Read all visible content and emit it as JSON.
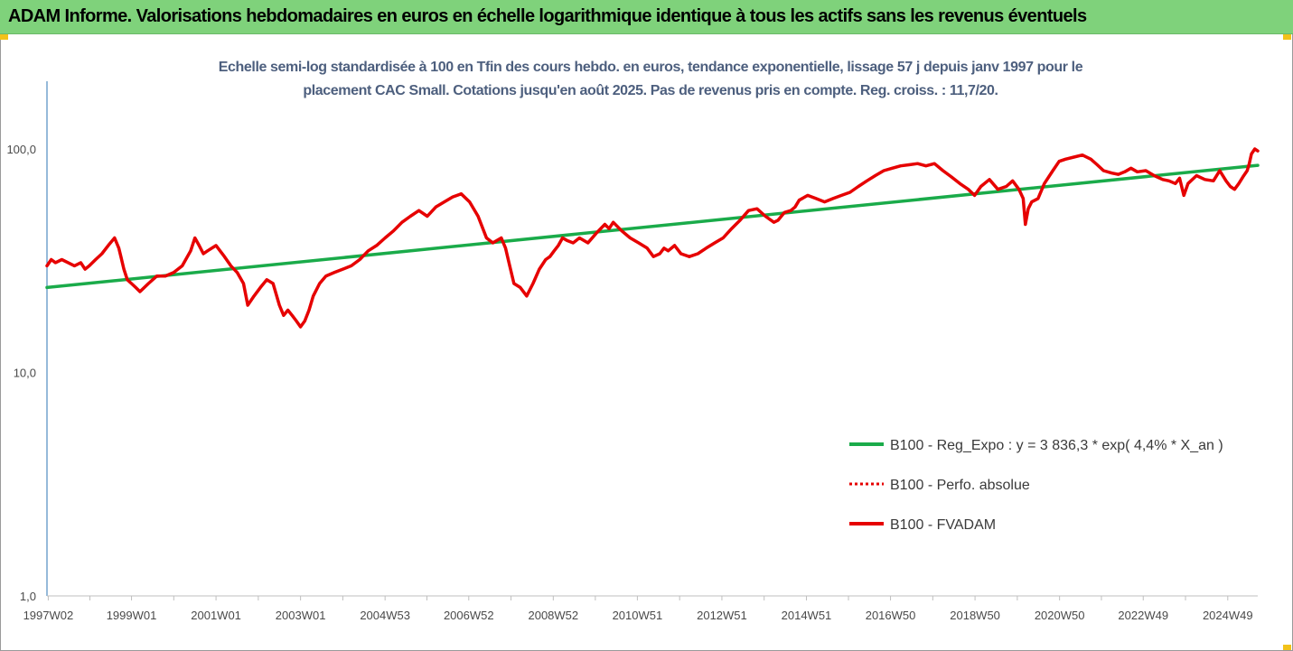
{
  "header": {
    "title": "ADAM Informe. Valorisations hebdomadaires en euros en échelle logarithmique identique à tous les actifs sans les revenus éventuels"
  },
  "colors": {
    "banner": "#7fd27b",
    "regression": "#1aab4a",
    "series": "#e60000",
    "subtitle": "#4d5f7e",
    "axis": "#2e75b6"
  },
  "chart_data": {
    "type": "line",
    "title": "Echelle semi-log standardisée à 100 en Tfin des cours hebdo. en euros, tendance exponentielle, lissage 57 j depuis janv 1997 pour le placement CAC Small. Cotations jusqu'en août 2025. Pas de revenus pris en compte. Reg. croiss. : 11,7/20.",
    "title_lines": [
      "Echelle semi-log standardisée à 100 en Tfin des cours hebdo. en euros, tendance exponentielle, lissage 57 j depuis janv 1997 pour le",
      "placement CAC Small. Cotations jusqu'en août 2025. Pas de revenus pris en compte. Reg. croiss. : 11,7/20."
    ],
    "y_scale": "log",
    "ylim": [
      1,
      200
    ],
    "y_ticks": [
      {
        "value": 100,
        "label": "100,0"
      },
      {
        "value": 10,
        "label": "10,0"
      },
      {
        "value": 1,
        "label": "1,0"
      }
    ],
    "x_range": [
      1997.0,
      2025.65
    ],
    "x_ticks": [
      {
        "x": 1997.03,
        "label": "1997W02"
      },
      {
        "x": 1999.0,
        "label": "1999W01"
      },
      {
        "x": 2001.0,
        "label": "2001W01"
      },
      {
        "x": 2003.0,
        "label": "2003W01"
      },
      {
        "x": 2005.0,
        "label": "2004W53"
      },
      {
        "x": 2006.98,
        "label": "2006W52"
      },
      {
        "x": 2008.98,
        "label": "2008W52"
      },
      {
        "x": 2010.97,
        "label": "2010W51"
      },
      {
        "x": 2012.97,
        "label": "2012W51"
      },
      {
        "x": 2014.97,
        "label": "2014W51"
      },
      {
        "x": 2016.96,
        "label": "2016W50"
      },
      {
        "x": 2018.96,
        "label": "2018W50"
      },
      {
        "x": 2020.96,
        "label": "2020W50"
      },
      {
        "x": 2022.94,
        "label": "2022W49"
      },
      {
        "x": 2024.94,
        "label": "2024W49"
      }
    ],
    "legend_position": "right",
    "series": [
      {
        "name": "B100 - Reg_Expo : y = 3 836,3 * exp( 4,4% *  X_an )",
        "style": "solid",
        "color": "#1aab4a",
        "x": [
          1997.0,
          2025.65
        ],
        "y": [
          24,
          84.5
        ]
      },
      {
        "name": "B100 - Perfo. absolue",
        "style": "dotted",
        "color": "#e60000",
        "x": [],
        "y": []
      },
      {
        "name": "B100 - FVADAM",
        "style": "solid",
        "color": "#e60000",
        "x": [
          1997.0,
          1997.1,
          1997.2,
          1997.35,
          1997.5,
          1997.65,
          1997.8,
          1997.9,
          1998.0,
          1998.15,
          1998.3,
          1998.45,
          1998.6,
          1998.7,
          1998.75,
          1998.82,
          1998.9,
          1999.0,
          1999.1,
          1999.2,
          1999.4,
          1999.6,
          1999.8,
          2000.0,
          2000.2,
          2000.4,
          2000.5,
          2000.6,
          2000.7,
          2000.8,
          2001.0,
          2001.2,
          2001.35,
          2001.5,
          2001.65,
          2001.75,
          2001.9,
          2002.05,
          2002.2,
          2002.35,
          2002.5,
          2002.6,
          2002.7,
          2002.8,
          2002.9,
          2003.0,
          2003.1,
          2003.2,
          2003.3,
          2003.45,
          2003.6,
          2003.8,
          2004.0,
          2004.2,
          2004.4,
          2004.6,
          2004.8,
          2005.0,
          2005.2,
          2005.4,
          2005.6,
          2005.8,
          2006.0,
          2006.2,
          2006.4,
          2006.6,
          2006.8,
          2007.0,
          2007.2,
          2007.4,
          2007.55,
          2007.65,
          2007.75,
          2007.85,
          2007.95,
          2008.05,
          2008.2,
          2008.35,
          2008.5,
          2008.65,
          2008.8,
          2008.9,
          2009.0,
          2009.1,
          2009.2,
          2009.3,
          2009.45,
          2009.6,
          2009.8,
          2010.0,
          2010.2,
          2010.3,
          2010.4,
          2010.6,
          2010.8,
          2011.0,
          2011.2,
          2011.35,
          2011.5,
          2011.6,
          2011.7,
          2011.85,
          2012.0,
          2012.2,
          2012.4,
          2012.6,
          2012.8,
          2013.0,
          2013.2,
          2013.4,
          2013.6,
          2013.8,
          2014.0,
          2014.2,
          2014.3,
          2014.45,
          2014.6,
          2014.7,
          2014.8,
          2015.0,
          2015.2,
          2015.4,
          2015.6,
          2015.8,
          2016.0,
          2016.2,
          2016.4,
          2016.6,
          2016.8,
          2017.0,
          2017.2,
          2017.4,
          2017.6,
          2017.8,
          2018.0,
          2018.2,
          2018.4,
          2018.6,
          2018.8,
          2018.95,
          2019.1,
          2019.3,
          2019.5,
          2019.7,
          2019.85,
          2020.0,
          2020.1,
          2020.15,
          2020.22,
          2020.3,
          2020.45,
          2020.6,
          2020.8,
          2020.95,
          2021.1,
          2021.3,
          2021.5,
          2021.7,
          2021.85,
          2022.0,
          2022.2,
          2022.35,
          2022.5,
          2022.65,
          2022.8,
          2023.0,
          2023.2,
          2023.4,
          2023.55,
          2023.7,
          2023.8,
          2023.9,
          2024.0,
          2024.2,
          2024.4,
          2024.6,
          2024.75,
          2024.9,
          2025.0,
          2025.1,
          2025.2,
          2025.3,
          2025.4,
          2025.45,
          2025.5,
          2025.58,
          2025.65
        ],
        "y": [
          30,
          32,
          31,
          32,
          31,
          30,
          31,
          29,
          30,
          32,
          34,
          37,
          40,
          36,
          33,
          29,
          26,
          25,
          24,
          23,
          25,
          27,
          27,
          28,
          30,
          35,
          40,
          37,
          34,
          35,
          37,
          33,
          30,
          28,
          25,
          20,
          22,
          24,
          26,
          25,
          20,
          18,
          19,
          18,
          17,
          16,
          17,
          19,
          22,
          25,
          27,
          28,
          29,
          30,
          32,
          35,
          37,
          40,
          43,
          47,
          50,
          53,
          50,
          55,
          58,
          61,
          63,
          58,
          50,
          40,
          38,
          39,
          40,
          36,
          30,
          25,
          24,
          22,
          25,
          29,
          32,
          33,
          35,
          37,
          40,
          39,
          38,
          40,
          38,
          42,
          46,
          44,
          47,
          43,
          40,
          38,
          36,
          33,
          34,
          36,
          35,
          37,
          34,
          33,
          34,
          36,
          38,
          40,
          44,
          48,
          53,
          54,
          50,
          47,
          48,
          52,
          53,
          55,
          59,
          62,
          60,
          58,
          60,
          62,
          64,
          68,
          72,
          76,
          80,
          82,
          84,
          85,
          86,
          84,
          86,
          80,
          75,
          70,
          66,
          62,
          68,
          73,
          66,
          68,
          72,
          66,
          60,
          46,
          54,
          58,
          60,
          70,
          80,
          88,
          90,
          92,
          94,
          90,
          85,
          80,
          78,
          77,
          79,
          82,
          79,
          80,
          76,
          73,
          72,
          70,
          74,
          62,
          70,
          76,
          73,
          72,
          80,
          72,
          68,
          66,
          70,
          75,
          80,
          86,
          95,
          100,
          98
        ]
      }
    ]
  }
}
